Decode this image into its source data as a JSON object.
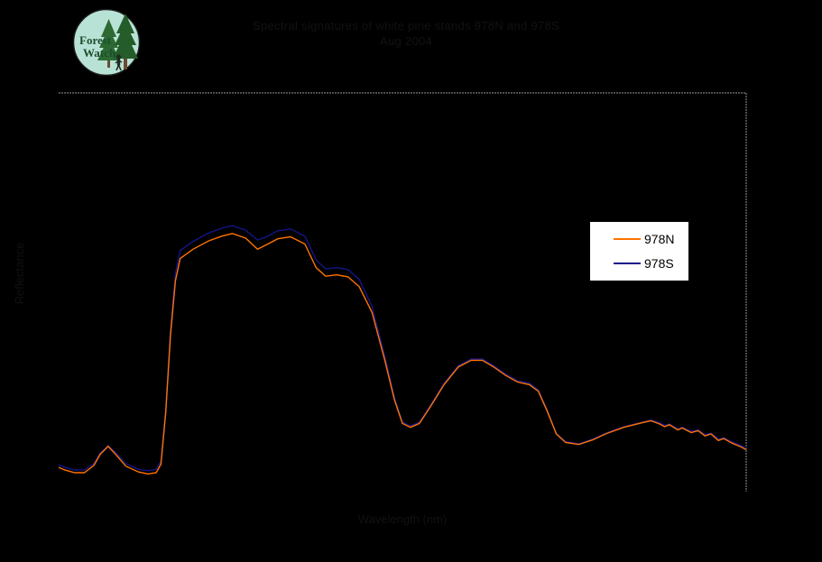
{
  "logo": {
    "text_line1": "Forest",
    "text_line2": "Watch",
    "bg_color": "#b9e2d6",
    "ring_color": "#1b1b1b",
    "tree_color": "#2d6a33",
    "trunk_color": "#6b4a2f",
    "text_color": "#1c4f2d"
  },
  "title": {
    "line1": "Spectral signatures of white pine stands 978N and 978S",
    "line2": "Aug 2004"
  },
  "axes": {
    "x_label": "Wavelength (nm)",
    "y_label": "Reflectance"
  },
  "legend": {
    "items": [
      {
        "label": "978N",
        "color": "#ff7300"
      },
      {
        "label": "978S",
        "color": "#15158a"
      }
    ]
  },
  "frame_color": "#9a9a9a",
  "chart_data": {
    "type": "line",
    "title": "Spectral signatures of white pine stands 978N and 978S — Aug 2004",
    "xlabel": "Wavelength (nm)",
    "ylabel": "Reflectance (%)",
    "xlim": [
      350,
      2500
    ],
    "ylim": [
      0,
      60
    ],
    "grid": false,
    "legend_position": "right-center",
    "series": [
      {
        "name": "978S",
        "color": "#15158a",
        "points": [
          [
            350,
            3.4
          ],
          [
            370,
            3.0
          ],
          [
            400,
            2.6
          ],
          [
            430,
            2.6
          ],
          [
            460,
            3.6
          ],
          [
            480,
            5.2
          ],
          [
            505,
            6.3
          ],
          [
            530,
            5.2
          ],
          [
            560,
            3.6
          ],
          [
            600,
            2.7
          ],
          [
            630,
            2.5
          ],
          [
            655,
            2.7
          ],
          [
            670,
            4.0
          ],
          [
            685,
            12.0
          ],
          [
            700,
            24.0
          ],
          [
            715,
            32.5
          ],
          [
            730,
            36.0
          ],
          [
            770,
            37.4
          ],
          [
            820,
            38.7
          ],
          [
            860,
            39.4
          ],
          [
            893,
            39.8
          ],
          [
            935,
            39.1
          ],
          [
            972,
            37.6
          ],
          [
            1000,
            38.1
          ],
          [
            1035,
            39.0
          ],
          [
            1075,
            39.3
          ],
          [
            1120,
            38.2
          ],
          [
            1155,
            34.6
          ],
          [
            1185,
            33.2
          ],
          [
            1220,
            33.4
          ],
          [
            1255,
            33.1
          ],
          [
            1290,
            31.6
          ],
          [
            1330,
            27.5
          ],
          [
            1370,
            19.9
          ],
          [
            1400,
            13.7
          ],
          [
            1425,
            9.9
          ],
          [
            1450,
            9.3
          ],
          [
            1478,
            9.9
          ],
          [
            1512,
            12.4
          ],
          [
            1555,
            15.8
          ],
          [
            1600,
            18.5
          ],
          [
            1640,
            19.5
          ],
          [
            1675,
            19.5
          ],
          [
            1710,
            18.5
          ],
          [
            1748,
            17.2
          ],
          [
            1785,
            16.2
          ],
          [
            1822,
            15.8
          ],
          [
            1850,
            14.8
          ],
          [
            1878,
            11.7
          ],
          [
            1906,
            8.2
          ],
          [
            1935,
            6.9
          ],
          [
            1977,
            6.6
          ],
          [
            2020,
            7.3
          ],
          [
            2060,
            8.2
          ],
          [
            2117,
            9.2
          ],
          [
            2175,
            9.9
          ],
          [
            2202,
            10.2
          ],
          [
            2230,
            9.8
          ],
          [
            2245,
            9.4
          ],
          [
            2260,
            9.6
          ],
          [
            2286,
            8.9
          ],
          [
            2300,
            9.1
          ],
          [
            2328,
            8.5
          ],
          [
            2350,
            8.7
          ],
          [
            2371,
            8.0
          ],
          [
            2390,
            8.2
          ],
          [
            2413,
            7.3
          ],
          [
            2430,
            7.5
          ],
          [
            2455,
            6.9
          ],
          [
            2470,
            6.6
          ],
          [
            2485,
            6.3
          ],
          [
            2500,
            5.9
          ]
        ]
      },
      {
        "name": "978N",
        "color": "#ff7300",
        "points": [
          [
            350,
            3.0
          ],
          [
            370,
            2.6
          ],
          [
            400,
            2.2
          ],
          [
            430,
            2.2
          ],
          [
            460,
            3.3
          ],
          [
            480,
            5.0
          ],
          [
            505,
            6.2
          ],
          [
            530,
            4.9
          ],
          [
            560,
            3.2
          ],
          [
            600,
            2.3
          ],
          [
            630,
            2.0
          ],
          [
            655,
            2.2
          ],
          [
            670,
            3.5
          ],
          [
            685,
            11.4
          ],
          [
            700,
            23.2
          ],
          [
            715,
            31.4
          ],
          [
            730,
            34.8
          ],
          [
            770,
            36.2
          ],
          [
            820,
            37.5
          ],
          [
            860,
            38.2
          ],
          [
            893,
            38.6
          ],
          [
            935,
            37.9
          ],
          [
            972,
            36.2
          ],
          [
            1000,
            36.9
          ],
          [
            1035,
            37.8
          ],
          [
            1075,
            38.1
          ],
          [
            1120,
            37.0
          ],
          [
            1155,
            33.4
          ],
          [
            1185,
            32.1
          ],
          [
            1220,
            32.3
          ],
          [
            1255,
            32.0
          ],
          [
            1290,
            30.5
          ],
          [
            1330,
            26.6
          ],
          [
            1370,
            19.3
          ],
          [
            1400,
            13.3
          ],
          [
            1425,
            9.7
          ],
          [
            1450,
            9.1
          ],
          [
            1478,
            9.7
          ],
          [
            1512,
            12.2
          ],
          [
            1555,
            15.6
          ],
          [
            1600,
            18.3
          ],
          [
            1640,
            19.3
          ],
          [
            1675,
            19.3
          ],
          [
            1710,
            18.3
          ],
          [
            1748,
            17.0
          ],
          [
            1785,
            16.0
          ],
          [
            1822,
            15.6
          ],
          [
            1850,
            14.6
          ],
          [
            1878,
            11.5
          ],
          [
            1906,
            8.1
          ],
          [
            1935,
            6.8
          ],
          [
            1977,
            6.5
          ],
          [
            2020,
            7.2
          ],
          [
            2060,
            8.1
          ],
          [
            2117,
            9.1
          ],
          [
            2175,
            9.8
          ],
          [
            2202,
            10.1
          ],
          [
            2230,
            9.6
          ],
          [
            2245,
            9.2
          ],
          [
            2260,
            9.5
          ],
          [
            2286,
            8.7
          ],
          [
            2300,
            9.0
          ],
          [
            2328,
            8.3
          ],
          [
            2350,
            8.6
          ],
          [
            2371,
            7.8
          ],
          [
            2390,
            8.1
          ],
          [
            2413,
            7.1
          ],
          [
            2430,
            7.4
          ],
          [
            2455,
            6.7
          ],
          [
            2470,
            6.4
          ],
          [
            2485,
            6.1
          ],
          [
            2500,
            5.7
          ]
        ]
      }
    ]
  }
}
